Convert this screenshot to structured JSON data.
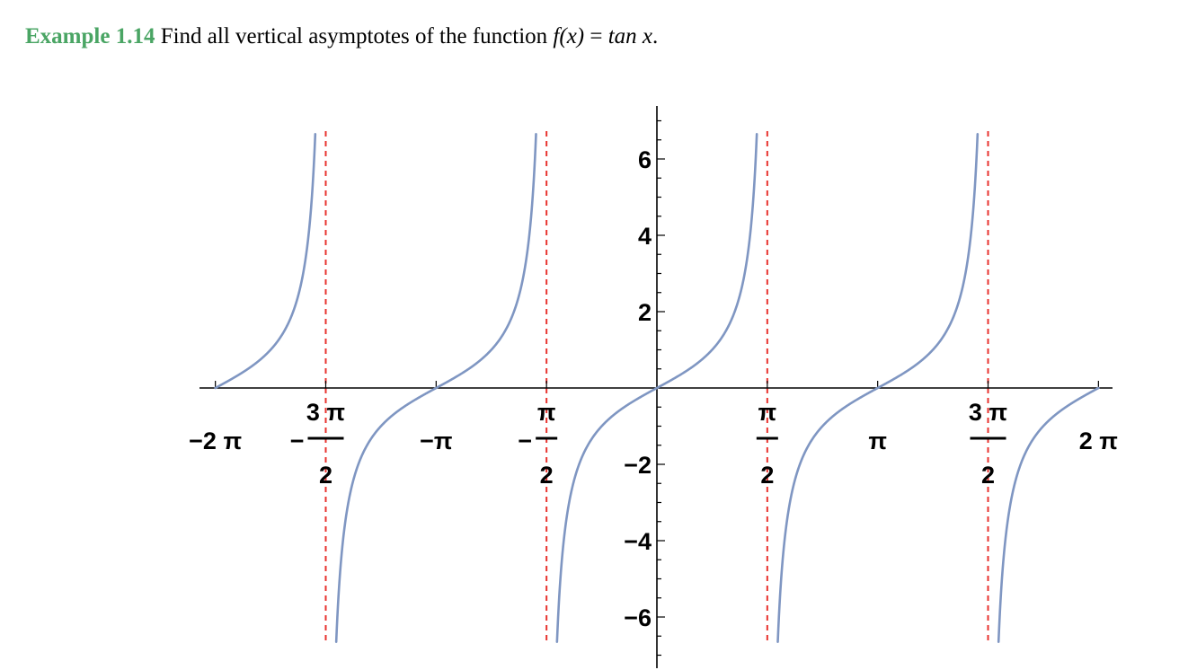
{
  "heading": {
    "label": "Example 1.14",
    "text": "Find all vertical asymptotes of the function",
    "formula_lhs": "f(x)",
    "formula_eq": " = ",
    "formula_rhs": "tan x",
    "formula_end": "."
  },
  "chart_data": {
    "type": "line",
    "title": "",
    "xlabel": "",
    "ylabel": "",
    "xlim": [
      -6.2832,
      6.2832
    ],
    "ylim": [
      -7.0,
      7.0
    ],
    "grid": false,
    "legend": "none",
    "series": [
      {
        "function": "tan(x)",
        "color": "#7f96c2"
      }
    ],
    "asymptotes": {
      "x": [
        -4.7124,
        -1.5708,
        1.5708,
        4.7124
      ],
      "color": "#e8332f",
      "style": "dashed"
    },
    "x_ticks": [
      {
        "value": -6.2832,
        "num": "−2 π",
        "den": ""
      },
      {
        "value": -4.7124,
        "num": "3 π",
        "den": "2",
        "sign": "−"
      },
      {
        "value": -3.1416,
        "num": "−π",
        "den": ""
      },
      {
        "value": -1.5708,
        "num": "π",
        "den": "2",
        "sign": "−"
      },
      {
        "value": 1.5708,
        "num": "π",
        "den": "2",
        "sign": ""
      },
      {
        "value": 3.1416,
        "num": "π",
        "den": ""
      },
      {
        "value": 4.7124,
        "num": "3 π",
        "den": "2",
        "sign": ""
      },
      {
        "value": 6.2832,
        "num": "2 π",
        "den": ""
      }
    ],
    "y_ticks": [
      {
        "value": 6,
        "label": "6"
      },
      {
        "value": 4,
        "label": "4"
      },
      {
        "value": 2,
        "label": "2"
      },
      {
        "value": -2,
        "label": "−2"
      },
      {
        "value": -4,
        "label": "−4"
      },
      {
        "value": -6,
        "label": "−6"
      }
    ],
    "y_minor_step": 0.5,
    "curve_colour": "#7f96c2",
    "axis_colour": "#000000"
  }
}
